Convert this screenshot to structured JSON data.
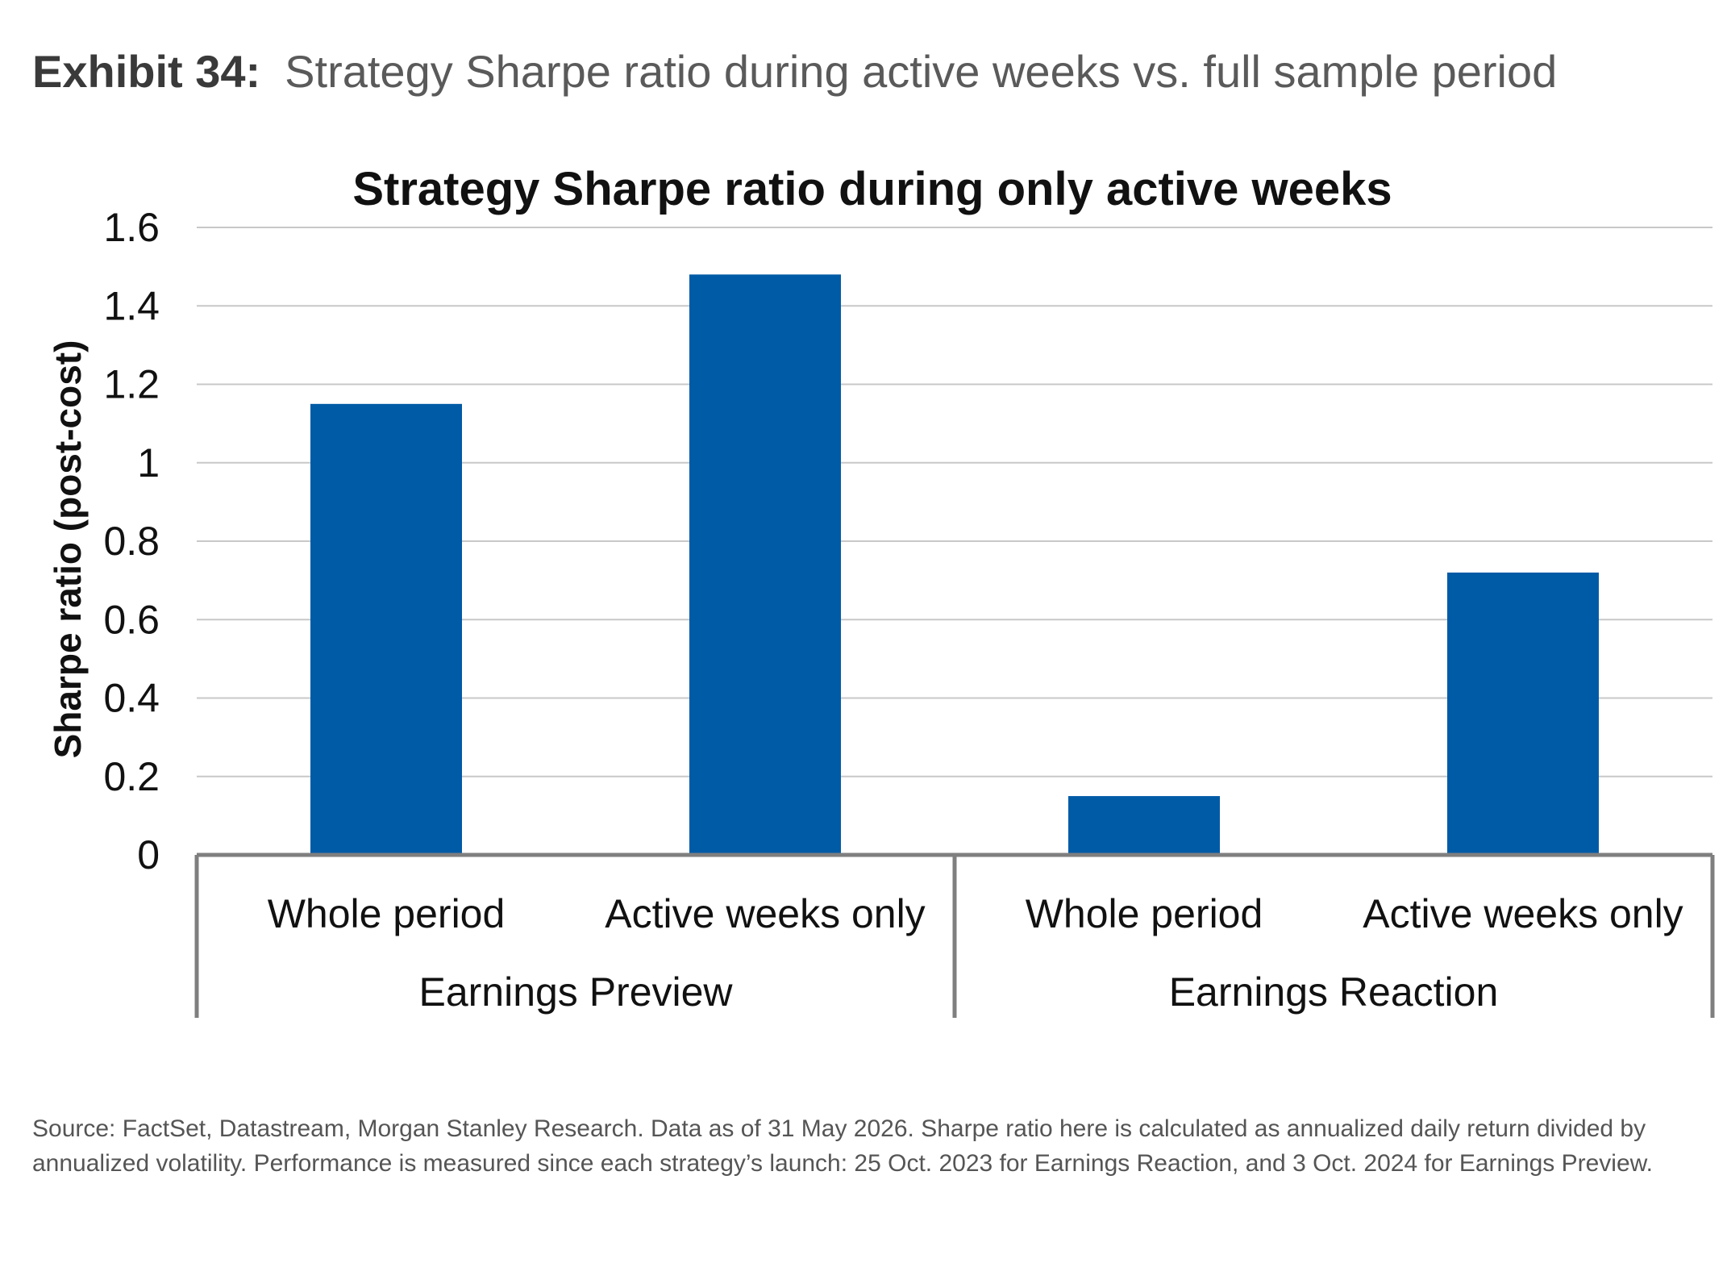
{
  "exhibit": {
    "label": "Exhibit 34:",
    "title": "Strategy Sharpe ratio during active weeks vs. full sample period"
  },
  "chart_data": {
    "type": "bar",
    "title": "Strategy Sharpe ratio during only active weeks",
    "ylabel": "Sharpe ratio (post-cost)",
    "xlabel": "",
    "ylim": [
      0,
      1.6
    ],
    "yticks": [
      "0",
      "0.2",
      "0.4",
      "0.6",
      "0.8",
      "1",
      "1.2",
      "1.4",
      "1.6"
    ],
    "grid": true,
    "groups": [
      {
        "name": "Earnings Preview",
        "categories": [
          "Whole period",
          "Active weeks only"
        ],
        "values": [
          1.15,
          1.48
        ]
      },
      {
        "name": "Earnings Reaction",
        "categories": [
          "Whole period",
          "Active weeks only"
        ],
        "values": [
          0.15,
          0.72
        ]
      }
    ],
    "colors": {
      "bar": "#005BA6",
      "grid": "#c8c8c8",
      "axis": "#7f7f7f"
    }
  },
  "source": "Source: FactSet, Datastream, Morgan Stanley Research. Data as of 31 May 2026. Sharpe ratio here is calculated as annualized daily return divided by annualized volatility. Performance is measured since each strategy’s launch: 25 Oct. 2023 for Earnings Reaction, and 3 Oct. 2024 for Earnings Preview."
}
